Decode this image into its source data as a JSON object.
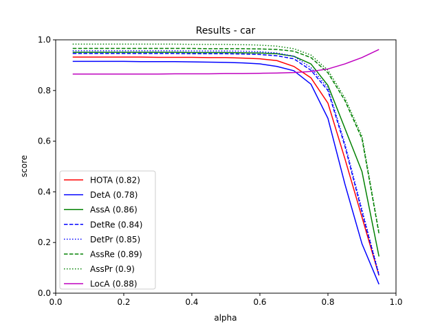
{
  "chart_data": {
    "type": "line",
    "title": "Results - car",
    "xlabel": "alpha",
    "ylabel": "score",
    "xlim": [
      0,
      1
    ],
    "ylim": [
      0,
      1
    ],
    "xticks": [
      "0.0",
      "0.2",
      "0.4",
      "0.6",
      "0.8",
      "1.0"
    ],
    "yticks": [
      "0.0",
      "0.2",
      "0.4",
      "0.6",
      "0.8",
      "1.0"
    ],
    "grid": false,
    "legend_position": "lower-left",
    "x": [
      0.05,
      0.1,
      0.15,
      0.2,
      0.25,
      0.3,
      0.35,
      0.4,
      0.45,
      0.5,
      0.55,
      0.6,
      0.65,
      0.7,
      0.75,
      0.8,
      0.85,
      0.9,
      0.95
    ],
    "series": [
      {
        "name": "HOTA (0.82)",
        "color": "#ff0000",
        "dash": "solid",
        "values": [
          0.932,
          0.932,
          0.932,
          0.932,
          0.932,
          0.931,
          0.931,
          0.931,
          0.93,
          0.93,
          0.928,
          0.925,
          0.918,
          0.895,
          0.85,
          0.75,
          0.53,
          0.3,
          0.07
        ]
      },
      {
        "name": "DetA (0.78)",
        "color": "#0000ff",
        "dash": "solid",
        "values": [
          0.915,
          0.915,
          0.915,
          0.915,
          0.914,
          0.914,
          0.914,
          0.913,
          0.912,
          0.911,
          0.909,
          0.905,
          0.895,
          0.878,
          0.825,
          0.69,
          0.43,
          0.195,
          0.035
        ]
      },
      {
        "name": "AssA (0.86)",
        "color": "#008000",
        "dash": "solid",
        "values": [
          0.951,
          0.951,
          0.951,
          0.951,
          0.951,
          0.951,
          0.951,
          0.95,
          0.95,
          0.95,
          0.949,
          0.948,
          0.945,
          0.935,
          0.905,
          0.82,
          0.65,
          0.48,
          0.145
        ]
      },
      {
        "name": "DetRe (0.84)",
        "color": "#0000ff",
        "dash": "dashed",
        "values": [
          0.946,
          0.946,
          0.946,
          0.946,
          0.946,
          0.946,
          0.946,
          0.945,
          0.945,
          0.945,
          0.944,
          0.942,
          0.937,
          0.925,
          0.88,
          0.8,
          0.58,
          0.32,
          0.07
        ]
      },
      {
        "name": "DetPr (0.85)",
        "color": "#0000ff",
        "dash": "dotted",
        "values": [
          0.957,
          0.957,
          0.957,
          0.957,
          0.957,
          0.957,
          0.957,
          0.956,
          0.956,
          0.956,
          0.955,
          0.953,
          0.948,
          0.935,
          0.89,
          0.81,
          0.59,
          0.33,
          0.075
        ]
      },
      {
        "name": "AssRe (0.89)",
        "color": "#008000",
        "dash": "dashed",
        "values": [
          0.966,
          0.966,
          0.966,
          0.966,
          0.966,
          0.966,
          0.966,
          0.966,
          0.965,
          0.965,
          0.965,
          0.964,
          0.962,
          0.955,
          0.93,
          0.87,
          0.76,
          0.61,
          0.235
        ]
      },
      {
        "name": "AssPr (0.9)",
        "color": "#008000",
        "dash": "dotted",
        "values": [
          0.983,
          0.983,
          0.983,
          0.983,
          0.983,
          0.983,
          0.983,
          0.982,
          0.982,
          0.982,
          0.981,
          0.979,
          0.975,
          0.965,
          0.94,
          0.88,
          0.77,
          0.62,
          0.24
        ]
      },
      {
        "name": "LocA (0.88)",
        "color": "#bf00bf",
        "dash": "solid",
        "values": [
          0.865,
          0.865,
          0.865,
          0.865,
          0.865,
          0.865,
          0.866,
          0.866,
          0.866,
          0.867,
          0.867,
          0.868,
          0.869,
          0.871,
          0.875,
          0.885,
          0.905,
          0.93,
          0.962
        ]
      }
    ]
  }
}
